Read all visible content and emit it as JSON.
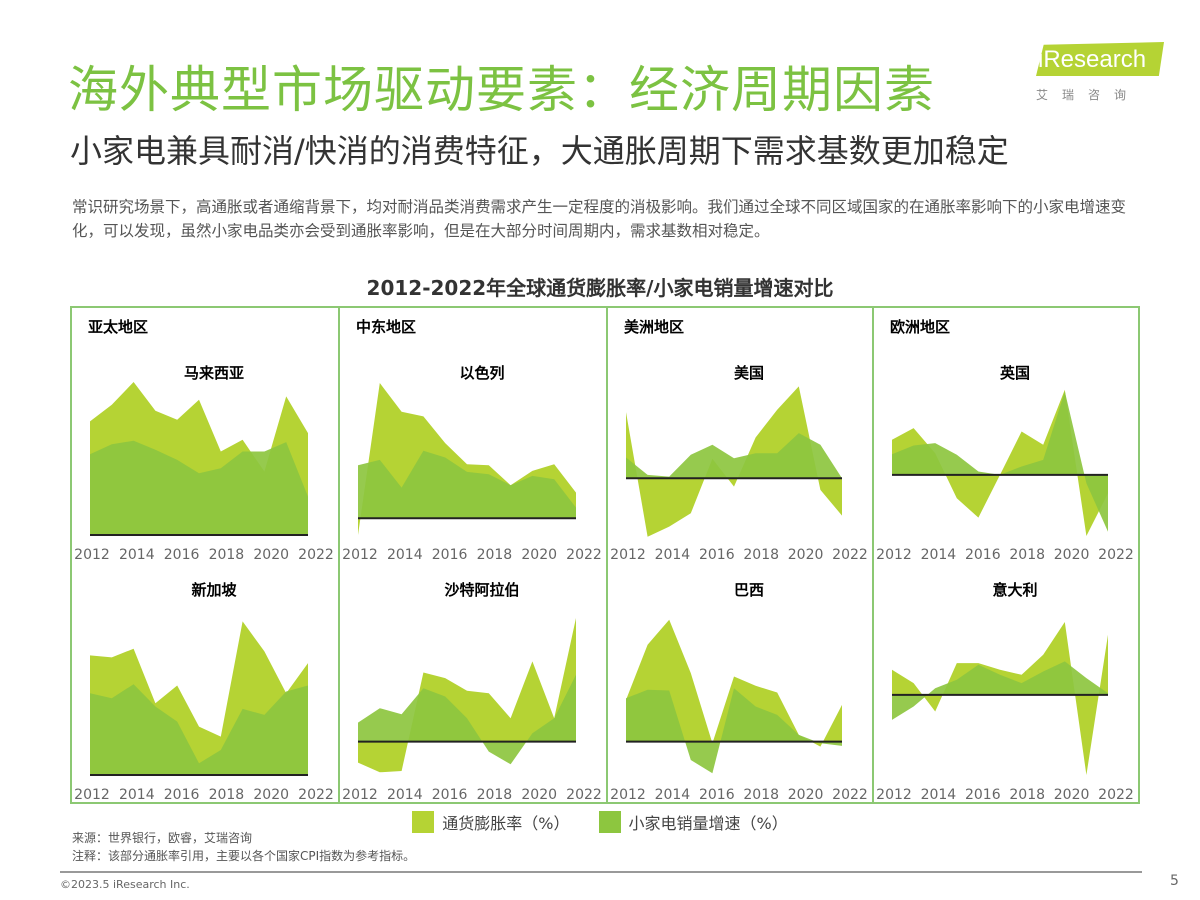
{
  "header": {
    "title": "海外典型市场驱动要素：经济周期因素",
    "subtitle": "小家电兼具耐消/快消的消费特征，大通胀周期下需求基数更加稳定",
    "description": "常识研究场景下，高通胀或者通缩背景下，均对耐消品类消费需求产生一定程度的消极影响。我们通过全球不同区域国家的在通胀率影响下的小家电增速变化，可以发现，虽然小家电品类亦会受到通胀率影响，但是在大部分时间周期内，需求基数相对稳定。"
  },
  "logo": {
    "text": "iResearch",
    "sub": "艾瑞咨询"
  },
  "colors": {
    "inflation": "#b5d334",
    "sales": "#8dc63f",
    "frame": "#8cc873",
    "title": "#7cc242"
  },
  "chart_data": {
    "type": "area",
    "title": "2012-2022年全球通货膨胀率/小家电销量增速对比",
    "x": [
      2012,
      2013,
      2014,
      2015,
      2016,
      2017,
      2018,
      2019,
      2020,
      2021,
      2022
    ],
    "tick_labels": [
      "2012",
      "2014",
      "2016",
      "2018",
      "2020",
      "2022"
    ],
    "legend": [
      "通货膨胀率（%）",
      "小家电销量增速（%）"
    ],
    "legend_placement": "bottom",
    "grid": false,
    "panels": [
      {
        "region": "亚太地区",
        "country": "马来西亚",
        "ylim": [
          0,
          50
        ],
        "inflation": [
          34,
          39,
          45.8,
          37.2,
          34.5,
          40.5,
          25,
          28.5,
          19,
          41.5,
          30.5
        ],
        "sales": [
          24.2,
          27.2,
          28.2,
          25.5,
          22.5,
          18.5,
          20,
          25,
          25,
          27.8,
          11.5
        ]
      },
      {
        "region": "中东地区",
        "country": "以色列",
        "ylim": [
          -5,
          45
        ],
        "inflation": [
          -5,
          40.5,
          31.9,
          30.5,
          22.5,
          16.2,
          15.9,
          9.9,
          14.2,
          16.2,
          7.7
        ],
        "sales": [
          15.9,
          17.5,
          9.2,
          20.2,
          18.2,
          13.9,
          13.2,
          9.9,
          12.7,
          11.7,
          3.2
        ]
      },
      {
        "region": "美洲地区",
        "country": "美国",
        "ylim": [
          -17,
          33
        ],
        "inflation": [
          19.8,
          -17.5,
          -14.5,
          -10.5,
          5.8,
          -2.5,
          12.2,
          20.5,
          27.5,
          -3.5,
          -11.2
        ],
        "sales": [
          6.2,
          1,
          0.5,
          7,
          10,
          6,
          7.5,
          7.5,
          13.5,
          10,
          0
        ]
      },
      {
        "region": "欧洲地区",
        "country": "英国",
        "ylim": [
          -18,
          32
        ],
        "inflation": [
          10.5,
          14,
          6.5,
          -7,
          -12.8,
          0,
          13,
          9,
          25.5,
          -18.3,
          -5.5
        ],
        "sales": [
          6.2,
          8.8,
          9.5,
          6,
          1,
          0,
          2.5,
          4.5,
          25,
          -2.5,
          -17
        ]
      },
      {
        "region": "",
        "country": "新加坡",
        "ylim": [
          0,
          50
        ],
        "inflation": [
          35.8,
          35.2,
          37.8,
          21.5,
          26.8,
          14.5,
          11.5,
          46,
          37,
          24.5,
          33.5
        ],
        "sales": [
          24.5,
          23,
          27.2,
          20.5,
          16,
          3.5,
          7.5,
          19.8,
          18,
          25,
          26.8
        ]
      },
      {
        "region": "",
        "country": "沙特阿拉伯",
        "ylim": [
          -10,
          40
        ],
        "inflation": [
          -6.3,
          -9.2,
          -8.8,
          20.7,
          19,
          15.2,
          14.5,
          7,
          24,
          7,
          37
        ],
        "sales": [
          5.7,
          10,
          8.2,
          16,
          13.5,
          7,
          -3,
          -6.8,
          2.5,
          7,
          20
        ]
      },
      {
        "region": "",
        "country": "巴西",
        "ylim": [
          -10,
          40
        ],
        "inflation": [
          12.5,
          29,
          36.5,
          20.5,
          -0.5,
          19.5,
          16.7,
          14.7,
          2,
          -1.5,
          11
        ],
        "sales": [
          13,
          15.5,
          15.3,
          -5.5,
          -9.5,
          16,
          10.5,
          8,
          2,
          -0.5,
          -1.3
        ]
      },
      {
        "region": "",
        "country": "意大利",
        "ylim": [
          -24,
          26
        ],
        "inflation": [
          7.5,
          3.5,
          -5,
          9.5,
          9.5,
          7.5,
          6,
          12,
          21.8,
          -24,
          18
        ],
        "sales": [
          -7.5,
          -3.5,
          2,
          4.5,
          9,
          6,
          3.5,
          7,
          10,
          5,
          0.5
        ]
      }
    ]
  },
  "footer": {
    "source": "来源：世界银行，欧睿，艾瑞咨询",
    "note": "注释：该部分通胀率引用，主要以各个国家CPI指数为参考指标。",
    "copyright": "©2023.5 iResearch Inc.",
    "page": "5"
  }
}
